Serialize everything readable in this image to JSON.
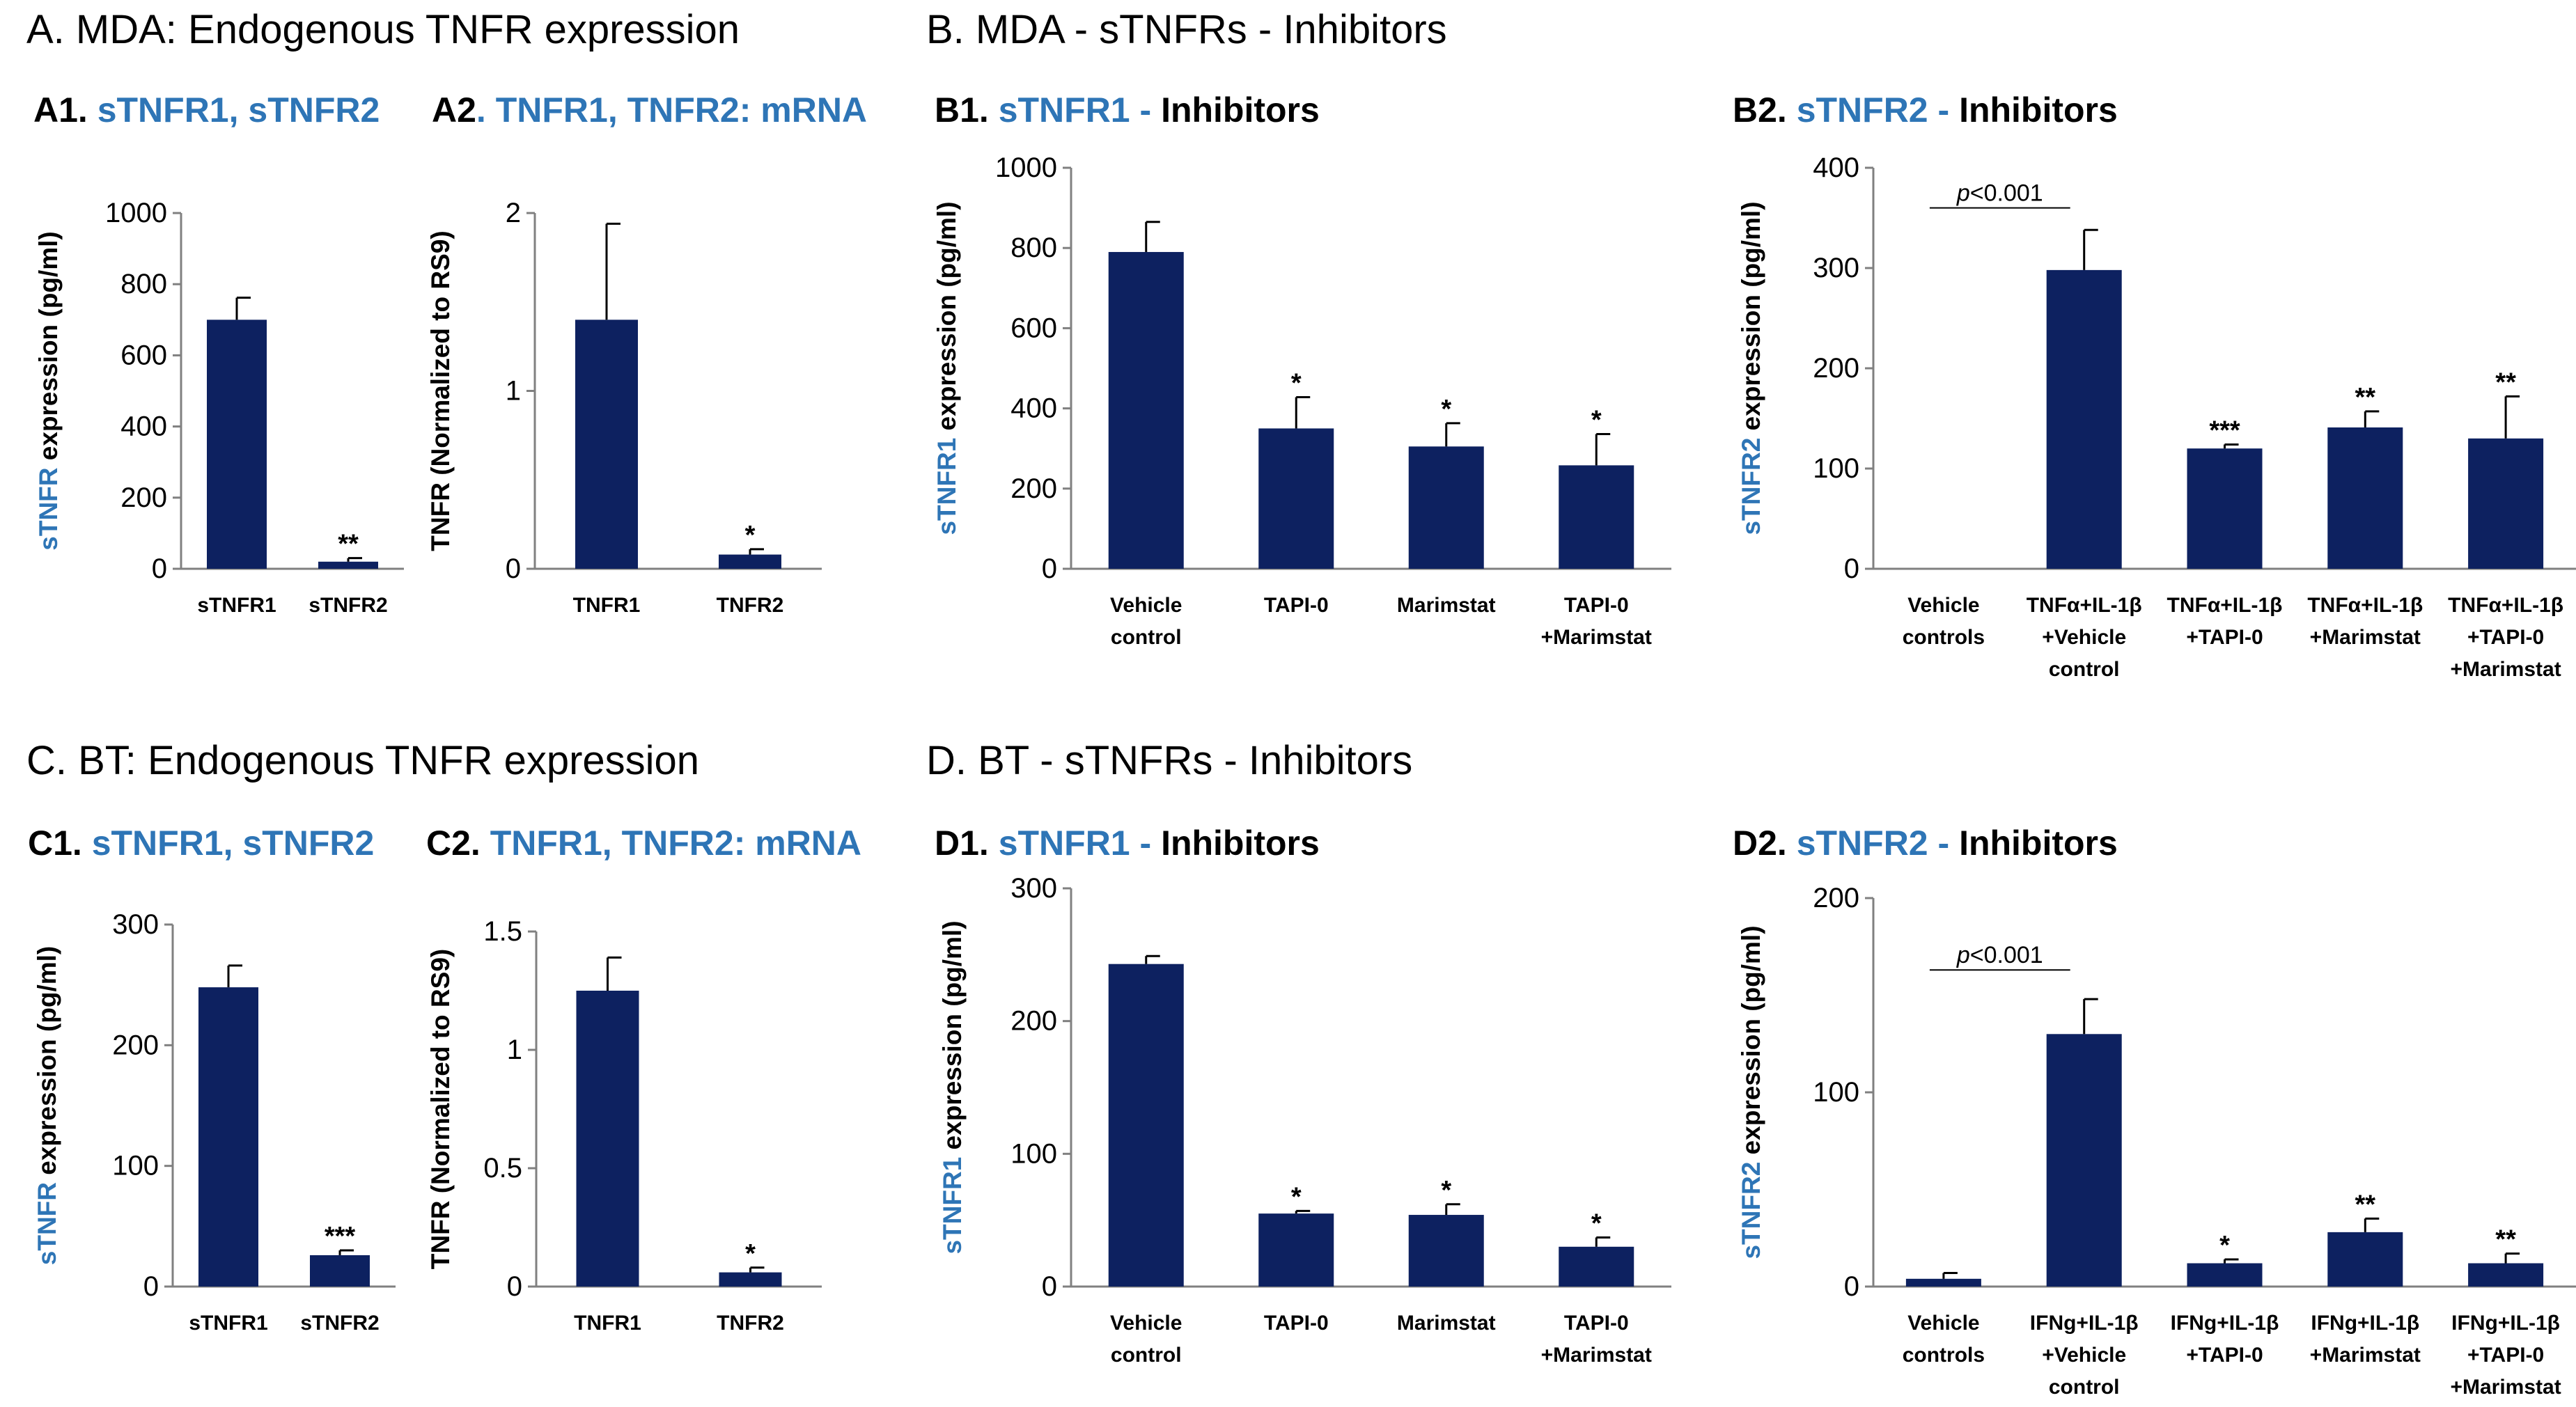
{
  "bar_color": "#0d2160",
  "accent_color": "#2e75b6",
  "sections": {
    "A": "A. MDA: Endogenous TNFR expression",
    "B": "B. MDA - sTNFRs - Inhibitors",
    "C": "C. BT: Endogenous TNFR expression",
    "D": "D. BT - sTNFRs - Inhibitors"
  },
  "chart_data": [
    {
      "id": "A1",
      "type": "bar",
      "title_parts": [
        {
          "text": "A1. ",
          "color": "black"
        },
        {
          "text": "sTNFR1, sTNFR2",
          "color": "blue"
        }
      ],
      "ylabel_parts": [
        {
          "text": "sTNFR",
          "color": "blue"
        },
        {
          "text": " expression (pg/ml)",
          "color": "black"
        }
      ],
      "ylim": [
        0,
        1000
      ],
      "yticks": [
        0,
        200,
        400,
        600,
        800,
        1000
      ],
      "categories": [
        [
          "sTNFR1"
        ],
        [
          "sTNFR2"
        ]
      ],
      "values": [
        700,
        20
      ],
      "errors": [
        62,
        10
      ],
      "annotations": [
        "",
        "**"
      ]
    },
    {
      "id": "A2",
      "type": "bar",
      "title_parts": [
        {
          "text": "A2",
          "color": "black"
        },
        {
          "text": ". TNFR1, TNFR2: mRNA",
          "color": "blue"
        }
      ],
      "ylabel_parts": [
        {
          "text": "TNFR (Normalized to RS9)",
          "color": "black"
        }
      ],
      "ylim": [
        0,
        2
      ],
      "yticks": [
        0,
        1,
        2
      ],
      "categories": [
        [
          "TNFR1"
        ],
        [
          "TNFR2"
        ]
      ],
      "values": [
        1.4,
        0.08
      ],
      "errors": [
        0.54,
        0.03
      ],
      "annotations": [
        "",
        "*"
      ]
    },
    {
      "id": "B1",
      "type": "bar",
      "title_parts": [
        {
          "text": "B1. ",
          "color": "black"
        },
        {
          "text": "sTNFR1 - ",
          "color": "blue"
        },
        {
          "text": "Inhibitors",
          "color": "black"
        }
      ],
      "ylabel_parts": [
        {
          "text": "sTNFR1",
          "color": "blue"
        },
        {
          "text": " expression (pg/ml)",
          "color": "black"
        }
      ],
      "ylim": [
        0,
        1000
      ],
      "yticks": [
        0,
        200,
        400,
        600,
        800,
        1000
      ],
      "categories": [
        [
          "Vehicle",
          "control"
        ],
        [
          "TAPI-0"
        ],
        [
          "Marimstat"
        ],
        [
          "TAPI-0",
          "+Marimstat"
        ]
      ],
      "values": [
        790,
        350,
        305,
        258
      ],
      "errors": [
        75,
        78,
        58,
        78
      ],
      "annotations": [
        "",
        "*",
        "*",
        "*"
      ]
    },
    {
      "id": "B2",
      "type": "bar",
      "title_parts": [
        {
          "text": "B2. ",
          "color": "black"
        },
        {
          "text": "sTNFR2 - ",
          "color": "blue"
        },
        {
          "text": "Inhibitors",
          "color": "black"
        }
      ],
      "ylabel_parts": [
        {
          "text": "sTNFR2",
          "color": "blue"
        },
        {
          "text": " expression (pg/ml)",
          "color": "black"
        }
      ],
      "ylim": [
        0,
        400
      ],
      "yticks": [
        0,
        100,
        200,
        300,
        400
      ],
      "categories": [
        [
          "Vehicle",
          "controls"
        ],
        [
          "TNFα+IL-1β",
          "+Vehicle",
          "control"
        ],
        [
          "TNFα+IL-1β",
          "+TAPI-0"
        ],
        [
          "TNFα+IL-1β",
          "+Marimstat"
        ],
        [
          "TNFα+IL-1β",
          "+TAPI-0",
          "+Marimstat"
        ]
      ],
      "values": [
        0,
        298,
        120,
        141,
        130
      ],
      "errors": [
        0,
        40,
        4,
        16,
        42
      ],
      "annotations": [
        "",
        "",
        "***",
        "**",
        "**"
      ],
      "significance": {
        "p_label": "p",
        "p_text": "<0.001",
        "from": 0,
        "to": 1,
        "y": 360
      }
    },
    {
      "id": "C1",
      "type": "bar",
      "title_parts": [
        {
          "text": "C1. ",
          "color": "black"
        },
        {
          "text": "sTNFR1, sTNFR2",
          "color": "blue"
        }
      ],
      "ylabel_parts": [
        {
          "text": "sTNFR",
          "color": "blue"
        },
        {
          "text": " expression (pg/ml)",
          "color": "black"
        }
      ],
      "ylim": [
        0,
        300
      ],
      "yticks": [
        0,
        100,
        200,
        300
      ],
      "categories": [
        [
          "sTNFR1"
        ],
        [
          "sTNFR2"
        ]
      ],
      "values": [
        248,
        26
      ],
      "errors": [
        18,
        4
      ],
      "annotations": [
        "",
        "***"
      ]
    },
    {
      "id": "C2",
      "type": "bar",
      "title_parts": [
        {
          "text": "C2. ",
          "color": "black"
        },
        {
          "text": "TNFR1, TNFR2: mRNA",
          "color": "blue"
        }
      ],
      "ylabel_parts": [
        {
          "text": "TNFR (Normalized to RS9)",
          "color": "black"
        }
      ],
      "ylim": [
        0,
        1.5
      ],
      "yticks": [
        0,
        0.5,
        1,
        1.5
      ],
      "categories": [
        [
          "TNFR1"
        ],
        [
          "TNFR2"
        ]
      ],
      "values": [
        1.25,
        0.06
      ],
      "errors": [
        0.14,
        0.02
      ],
      "annotations": [
        "",
        "*"
      ]
    },
    {
      "id": "D1",
      "type": "bar",
      "title_parts": [
        {
          "text": "D1. ",
          "color": "black"
        },
        {
          "text": "sTNFR1 - ",
          "color": "blue"
        },
        {
          "text": "Inhibitors",
          "color": "black"
        }
      ],
      "ylabel_parts": [
        {
          "text": "sTNFR1",
          "color": "blue"
        },
        {
          "text": " expression (pg/ml)",
          "color": "black"
        }
      ],
      "ylim": [
        0,
        300
      ],
      "yticks": [
        0,
        100,
        200,
        300
      ],
      "categories": [
        [
          "Vehicle",
          "control"
        ],
        [
          "TAPI-0"
        ],
        [
          "Marimstat"
        ],
        [
          "TAPI-0",
          "+Marimstat"
        ]
      ],
      "values": [
        243,
        55,
        54,
        30
      ],
      "errors": [
        6,
        2,
        8,
        7
      ],
      "annotations": [
        "",
        "*",
        "*",
        "*"
      ]
    },
    {
      "id": "D2",
      "type": "bar",
      "title_parts": [
        {
          "text": "D2. ",
          "color": "black"
        },
        {
          "text": "sTNFR2 - ",
          "color": "blue"
        },
        {
          "text": "Inhibitors",
          "color": "black"
        }
      ],
      "ylabel_parts": [
        {
          "text": "sTNFR2",
          "color": "blue"
        },
        {
          "text": " expression (pg/ml)",
          "color": "black"
        }
      ],
      "ylim": [
        0,
        200
      ],
      "yticks": [
        0,
        100,
        200
      ],
      "categories": [
        [
          "Vehicle",
          "controls"
        ],
        [
          "IFNg+IL-1β",
          "+Vehicle",
          "control"
        ],
        [
          "IFNg+IL-1β",
          "+TAPI-0"
        ],
        [
          "IFNg+IL-1β",
          "+Marimstat"
        ],
        [
          "IFNg+IL-1β",
          "+TAPI-0",
          "+Marimstat"
        ]
      ],
      "values": [
        4,
        130,
        12,
        28,
        12
      ],
      "errors": [
        3,
        18,
        2,
        7,
        5
      ],
      "annotations": [
        "",
        "",
        "*",
        "**",
        "**"
      ],
      "significance": {
        "p_label": "p",
        "p_text": "<0.001",
        "from": 0,
        "to": 1,
        "y": 163
      }
    }
  ]
}
